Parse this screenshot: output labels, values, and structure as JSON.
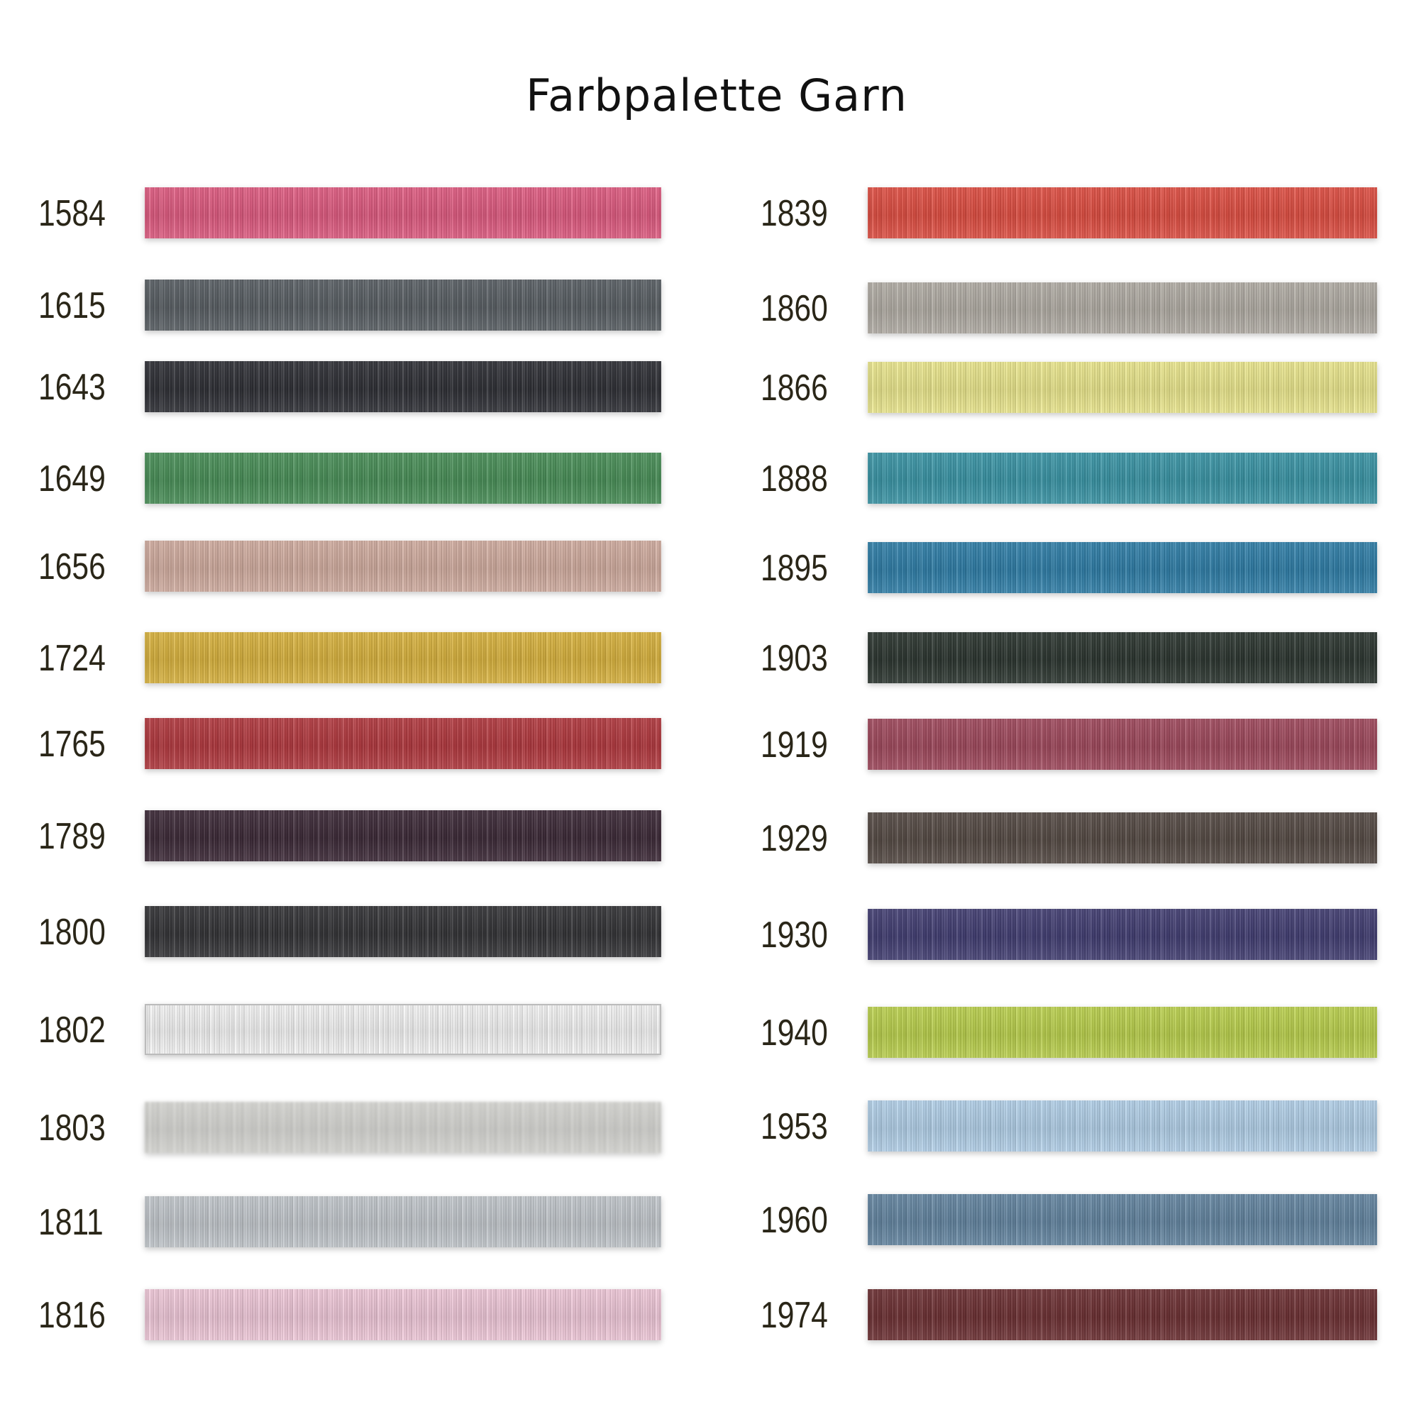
{
  "title": "Farbpalette Garn",
  "left_column": [
    {
      "code": "1584",
      "color": "#e25c82"
    },
    {
      "code": "1615",
      "color": "#5a6065"
    },
    {
      "code": "1643",
      "color": "#2f3036"
    },
    {
      "code": "1649",
      "color": "#4a9159"
    },
    {
      "code": "1656",
      "color": "#d4afa2"
    },
    {
      "code": "1724",
      "color": "#dcb53f"
    },
    {
      "code": "1765",
      "color": "#b53a40"
    },
    {
      "code": "1789",
      "color": "#3d2a38"
    },
    {
      "code": "1800",
      "color": "#343437"
    },
    {
      "code": "1802",
      "color": "#f7f7f7"
    },
    {
      "code": "1803",
      "color": "#dcdcd8"
    },
    {
      "code": "1811",
      "color": "#c5cacf"
    },
    {
      "code": "1816",
      "color": "#f3cbdc"
    }
  ],
  "right_column": [
    {
      "code": "1839",
      "color": "#e24f43"
    },
    {
      "code": "1860",
      "color": "#b4afa7"
    },
    {
      "code": "1866",
      "color": "#eeea8f"
    },
    {
      "code": "1888",
      "color": "#3b97a8"
    },
    {
      "code": "1895",
      "color": "#3080aa"
    },
    {
      "code": "1903",
      "color": "#2c3630"
    },
    {
      "code": "1919",
      "color": "#a24a5e"
    },
    {
      "code": "1929",
      "color": "#564b45"
    },
    {
      "code": "1930",
      "color": "#433f74"
    },
    {
      "code": "1940",
      "color": "#bdd34e"
    },
    {
      "code": "1953",
      "color": "#b5d3ec"
    },
    {
      "code": "1960",
      "color": "#6587a3"
    },
    {
      "code": "1974",
      "color": "#6e3134"
    }
  ]
}
